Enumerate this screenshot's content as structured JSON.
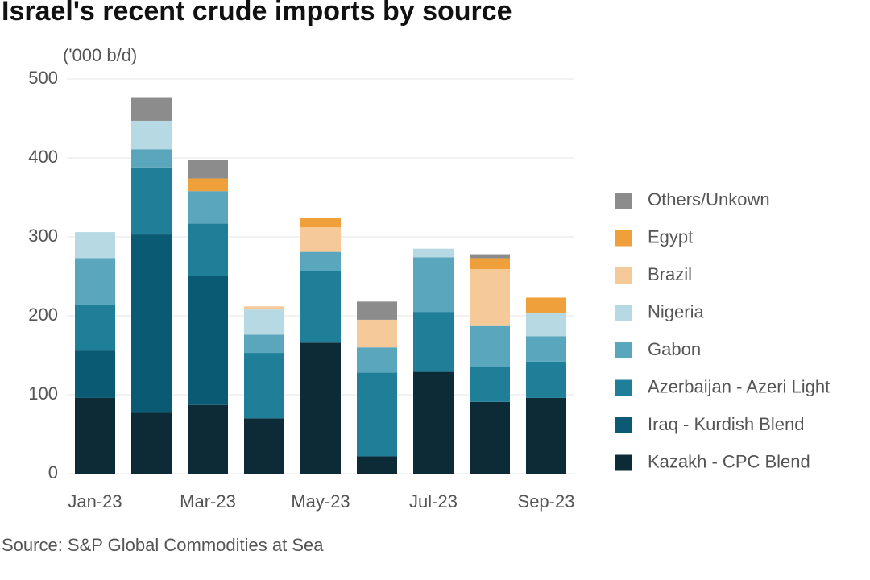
{
  "chart_data": {
    "type": "stacked_bar",
    "title": "Israel's recent crude imports by source",
    "y_axis_label": "('000 b/d)",
    "source": "Source: S&P Global Commodities at Sea",
    "categories": [
      "Jan-23",
      null,
      "Mar-23",
      null,
      "May-23",
      null,
      "Jul-23",
      null,
      "Sep-23"
    ],
    "series": [
      {
        "name": "Kazakh - CPC Blend",
        "color": "#0d2b36",
        "values": [
          96,
          77,
          87,
          70,
          166,
          22,
          129,
          91,
          96
        ]
      },
      {
        "name": "Iraq - Kurdish Blend",
        "color": "#0b5a74",
        "values": [
          60,
          226,
          164,
          0,
          0,
          0,
          0,
          0,
          0
        ]
      },
      {
        "name": "Azerbaijan - Azeri Light",
        "color": "#1f7f99",
        "values": [
          58,
          85,
          66,
          83,
          91,
          106,
          76,
          44,
          46
        ]
      },
      {
        "name": "Gabon",
        "color": "#5aa6bd",
        "values": [
          59,
          23,
          41,
          23,
          24,
          32,
          69,
          52,
          32
        ]
      },
      {
        "name": "Nigeria",
        "color": "#b6d9e4",
        "values": [
          33,
          36,
          0,
          32,
          0,
          0,
          11,
          0,
          30
        ]
      },
      {
        "name": "Brazil",
        "color": "#f5c998",
        "values": [
          0,
          0,
          0,
          4,
          31,
          35,
          0,
          72,
          0
        ]
      },
      {
        "name": "Egypt",
        "color": "#f0a03a",
        "values": [
          0,
          0,
          16,
          0,
          12,
          0,
          0,
          14,
          19
        ]
      },
      {
        "name": "Others/Unkown",
        "color": "#8c8c8c",
        "values": [
          0,
          29,
          23,
          0,
          0,
          23,
          0,
          5,
          0
        ]
      }
    ],
    "ylim": [
      0,
      500
    ],
    "yticks": [
      0,
      100,
      200,
      300,
      400,
      500
    ],
    "grid": true
  }
}
